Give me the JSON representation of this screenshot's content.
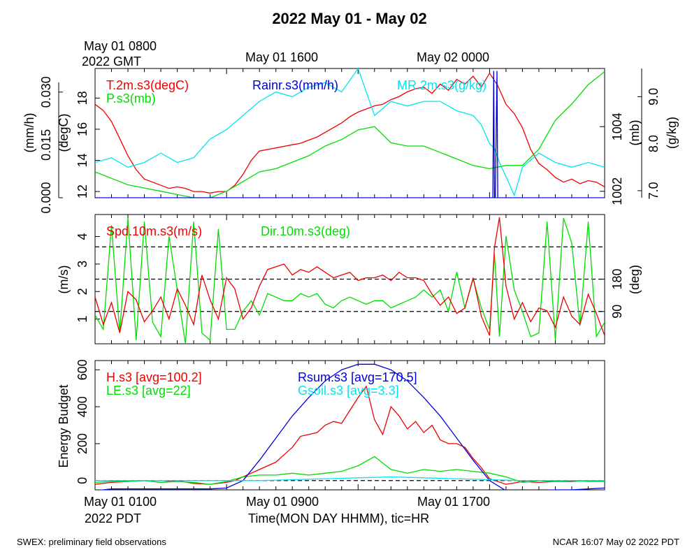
{
  "page": {
    "title": "2022 May 01 - May 02",
    "footer_left": "SWEX: preliminary field observations",
    "footer_right": "NCAR 16:07 May 02 2022 PDT",
    "top_time_left_1": "May 01 0800",
    "top_time_left_2": "2022 GMT",
    "top_time_mid": "May 01 1600",
    "top_time_right": "May 02 0000",
    "bottom_time_left_1": "May 01 0100",
    "bottom_time_left_2": "2022 PDT",
    "bottom_time_mid": "May 01 0900",
    "bottom_time_right": "May 01 1700",
    "xlabel": "Time(MON DAY HHMM), tic=HR"
  },
  "colors": {
    "red": "#ee0000",
    "green": "#00dd00",
    "blue": "#0000dd",
    "cyan": "#00e5ee",
    "black": "#000000"
  },
  "chart_data": [
    {
      "type": "line",
      "panel": "top",
      "x_unit": "hours since May 01 0100 PDT",
      "xlim": [
        0,
        31
      ],
      "axes": {
        "left_outer": {
          "label": "(mm/h)",
          "ticks": [
            "0.000",
            "0.015",
            "0.030"
          ],
          "range": [
            0,
            0.0367
          ]
        },
        "left_inner": {
          "label": "(degC)",
          "ticks": [
            "12",
            "14",
            "16",
            "18"
          ],
          "range": [
            11.6,
            19.9
          ]
        },
        "right_inner": {
          "label": "(mb)",
          "ticks": [
            "1002",
            "1004"
          ],
          "range": [
            1001.8,
            1005.8
          ]
        },
        "right_outer": {
          "label": "(g/kg)",
          "ticks": [
            "7.0",
            "8.0",
            "9.0"
          ],
          "range": [
            6.85,
            9.6
          ]
        }
      },
      "series": [
        {
          "name": "T.2m.s3(degC)",
          "color": "red",
          "axis": "left_inner",
          "x": [
            0,
            0.5,
            1,
            1.5,
            2,
            2.5,
            3,
            3.5,
            4,
            4.5,
            5,
            5.5,
            6,
            6.5,
            7,
            7.5,
            8,
            8.5,
            9,
            9.5,
            10,
            10.5,
            11,
            11.5,
            12,
            12.5,
            13,
            13.5,
            14,
            14.5,
            15,
            15.5,
            16,
            16.5,
            17,
            17.5,
            18,
            18.5,
            19,
            19.5,
            20,
            20.5,
            21,
            21.5,
            22,
            22.5,
            23,
            23.5,
            24,
            24.5,
            25,
            25.5,
            26,
            26.5,
            27,
            27.5,
            28,
            28.5,
            29,
            29.5,
            30,
            30.5,
            31
          ],
          "y": [
            17.6,
            17.2,
            16.5,
            15.4,
            14.3,
            13.4,
            12.8,
            12.6,
            12.4,
            12.2,
            12.3,
            12.2,
            12.0,
            12.0,
            11.9,
            12.0,
            12.0,
            12.4,
            13.1,
            14.0,
            14.6,
            14.7,
            14.8,
            14.9,
            15.0,
            15.1,
            15.3,
            15.5,
            15.8,
            16.1,
            16.4,
            16.8,
            17.1,
            17.3,
            17.5,
            17.6,
            17.9,
            18.1,
            18.4,
            18.6,
            18.7,
            18.3,
            18.9,
            18.5,
            19.2,
            18.9,
            19.4,
            18.7,
            19.6,
            18.8,
            17.6,
            17.0,
            16.1,
            14.7,
            13.8,
            13.4,
            12.9,
            12.6,
            12.8,
            12.5,
            12.7,
            12.6,
            12.3
          ]
        },
        {
          "name": "P.s3(mb)",
          "color": "green",
          "axis": "right_inner",
          "x": [
            0,
            1,
            2,
            3,
            4,
            5,
            6,
            7,
            8,
            9,
            10,
            11,
            12,
            13,
            14,
            15,
            16,
            17,
            18,
            19,
            20,
            21,
            22,
            23,
            24,
            25,
            26,
            27,
            28,
            29,
            30,
            31
          ],
          "y": [
            1002.6,
            1002.4,
            1002.2,
            1002.1,
            1002.0,
            1001.9,
            1001.8,
            1001.8,
            1002.0,
            1002.3,
            1002.6,
            1002.7,
            1002.9,
            1003.1,
            1003.4,
            1003.6,
            1003.9,
            1004.0,
            1003.5,
            1003.4,
            1003.4,
            1003.2,
            1003.0,
            1002.8,
            1002.7,
            1002.8,
            1002.8,
            1003.3,
            1004.2,
            1004.7,
            1005.3,
            1005.7
          ]
        },
        {
          "name": "MR.2m.s3(g/kg)",
          "color": "cyan",
          "axis": "right_outer",
          "x": [
            0,
            1,
            2,
            3,
            4,
            5,
            6,
            7,
            8,
            9,
            10,
            11,
            12,
            13,
            14,
            15,
            16,
            17,
            18,
            19,
            20,
            21,
            22,
            23,
            23.5,
            24,
            24.3,
            24.6,
            25,
            25.5,
            26,
            27,
            28,
            29,
            30,
            31
          ],
          "y": [
            7.6,
            7.7,
            7.5,
            7.6,
            7.8,
            7.6,
            7.7,
            8.1,
            8.3,
            8.6,
            8.9,
            9.1,
            9.0,
            9.2,
            9.3,
            9.1,
            9.6,
            8.6,
            8.9,
            8.8,
            8.9,
            8.9,
            8.7,
            8.6,
            8.4,
            8.0,
            7.9,
            7.6,
            7.3,
            6.9,
            7.5,
            7.8,
            7.6,
            7.5,
            7.6,
            7.5
          ]
        },
        {
          "name": "Rainr.s3(mm/h)",
          "color": "blue",
          "axis": "left_outer",
          "x": [
            0,
            24.2,
            24.25,
            24.3,
            24.35,
            24.45,
            24.5,
            24.55,
            31
          ],
          "y": [
            0,
            0,
            0.036,
            0,
            0,
            0.036,
            0,
            0,
            0
          ]
        }
      ]
    },
    {
      "type": "line",
      "panel": "middle",
      "xlim": [
        0,
        31
      ],
      "axes": {
        "left": {
          "label": "(m/s)",
          "ticks": [
            "1",
            "2",
            "3",
            "4"
          ],
          "range": [
            0.1,
            4.8
          ]
        },
        "right": {
          "label": "(deg)",
          "ticks": [
            "90",
            "180"
          ],
          "range": [
            0,
            360
          ]
        }
      },
      "reference_lines_deg": [
        90,
        180,
        270
      ],
      "series": [
        {
          "name": "Spd.10m.s3(m/s)",
          "color": "red",
          "axis": "left",
          "x": [
            0,
            0.5,
            1,
            1.5,
            2,
            2.5,
            3,
            3.5,
            4,
            4.5,
            5,
            5.5,
            6,
            6.5,
            7,
            7.5,
            8,
            8.5,
            9,
            9.5,
            10,
            10.5,
            11,
            11.5,
            12,
            12.5,
            13,
            13.5,
            14,
            14.5,
            15,
            15.5,
            16,
            16.5,
            17,
            17.5,
            18,
            18.5,
            19,
            19.5,
            20,
            20.5,
            21,
            21.5,
            22,
            22.5,
            23,
            23.5,
            24,
            24.3,
            24.6,
            25,
            25.5,
            26,
            26.5,
            27,
            27.5,
            28,
            28.5,
            29,
            29.5,
            30,
            30.5,
            31
          ],
          "y": [
            1.8,
            0.8,
            1.6,
            0.5,
            2.0,
            1.7,
            0.9,
            1.3,
            1.8,
            1.0,
            2.1,
            1.5,
            0.8,
            2.6,
            1.7,
            1.0,
            2.5,
            2.1,
            1.0,
            1.4,
            2.2,
            2.8,
            2.9,
            3.0,
            2.6,
            2.8,
            2.7,
            2.9,
            2.7,
            2.5,
            2.6,
            2.7,
            2.4,
            2.5,
            2.5,
            2.6,
            2.4,
            2.7,
            2.5,
            2.5,
            2.4,
            1.9,
            1.5,
            1.8,
            1.2,
            1.4,
            2.5,
            1.1,
            0.4,
            3.6,
            4.7,
            2.2,
            1.0,
            1.6,
            0.9,
            1.4,
            1.3,
            0.7,
            1.8,
            1.1,
            0.8,
            1.9,
            1.2,
            0.4
          ]
        },
        {
          "name": "Dir.10m.s3(deg)",
          "color": "green",
          "axis": "right",
          "x": [
            0,
            0.5,
            1,
            1.5,
            2,
            2.5,
            3,
            3.5,
            4,
            4.5,
            5,
            5.5,
            6,
            6.5,
            7,
            7.5,
            8,
            8.5,
            9,
            9.5,
            10,
            10.5,
            11,
            11.5,
            12,
            12.5,
            13,
            13.5,
            14,
            14.5,
            15,
            15.5,
            16,
            16.5,
            17,
            17.5,
            18,
            18.5,
            19,
            19.5,
            20,
            20.5,
            21,
            21.5,
            22,
            22.5,
            23,
            23.5,
            24,
            24.3,
            24.6,
            25,
            25.5,
            26,
            26.5,
            27,
            27.5,
            28,
            28.5,
            29,
            29.5,
            30,
            30.5,
            31
          ],
          "y": [
            80,
            40,
            330,
            30,
            350,
            10,
            340,
            60,
            20,
            300,
            150,
            0,
            340,
            30,
            10,
            320,
            40,
            40,
            90,
            120,
            80,
            140,
            130,
            120,
            120,
            140,
            130,
            140,
            110,
            100,
            120,
            130,
            120,
            110,
            120,
            120,
            100,
            110,
            120,
            130,
            150,
            130,
            150,
            90,
            200,
            100,
            180,
            100,
            40,
            250,
            20,
            300,
            150,
            90,
            20,
            30,
            340,
            10,
            350,
            280,
            50,
            340,
            20,
            60
          ]
        }
      ]
    },
    {
      "type": "line",
      "panel": "bottom",
      "xlim": [
        0,
        31
      ],
      "ylabel": "Energy Budget",
      "ylim": [
        -50,
        650
      ],
      "yticks": [
        0,
        200,
        400,
        600
      ],
      "zero_line": true,
      "series": [
        {
          "name": "H.s3 [avg=100.2]",
          "color": "red",
          "x": [
            0,
            1,
            2,
            3,
            4,
            5,
            6,
            7,
            8,
            8.5,
            9,
            9.5,
            10,
            10.5,
            11,
            11.5,
            12,
            12.5,
            13,
            13.5,
            14,
            14.5,
            15,
            15.5,
            16,
            16.5,
            17,
            17.5,
            18,
            18.5,
            19,
            19.5,
            20,
            20.5,
            21,
            21.5,
            22,
            22.5,
            23,
            23.5,
            24,
            25,
            26,
            27,
            28,
            29,
            30,
            31
          ],
          "y": [
            -20,
            -10,
            -5,
            0,
            -10,
            0,
            -15,
            -20,
            -10,
            0,
            20,
            40,
            60,
            80,
            100,
            140,
            180,
            240,
            250,
            260,
            300,
            320,
            310,
            380,
            450,
            510,
            330,
            250,
            400,
            350,
            280,
            320,
            260,
            300,
            220,
            200,
            200,
            180,
            120,
            70,
            10,
            -20,
            -5,
            -10,
            -5,
            -5,
            0,
            -5
          ]
        },
        {
          "name": "LE.s3 [avg=22]",
          "color": "green",
          "x": [
            0,
            1,
            2,
            3,
            4,
            5,
            6,
            7,
            8,
            9,
            10,
            11,
            12,
            13,
            14,
            15,
            16,
            17,
            18,
            19,
            20,
            21,
            22,
            23,
            24,
            25,
            26,
            27,
            28,
            29,
            30,
            31
          ],
          "y": [
            -10,
            -5,
            -5,
            0,
            -10,
            -5,
            -10,
            -20,
            -5,
            20,
            30,
            30,
            40,
            30,
            40,
            50,
            80,
            130,
            60,
            40,
            60,
            50,
            60,
            50,
            40,
            20,
            -10,
            0,
            -5,
            0,
            -5,
            -5
          ]
        },
        {
          "name": "Rsum.s3 [avg=170.5]",
          "color": "blue",
          "x": [
            0,
            1,
            2,
            3,
            4,
            5,
            6,
            7,
            8,
            9,
            10,
            11,
            12,
            13,
            14,
            15,
            16,
            17,
            18,
            19,
            20,
            21,
            22,
            23,
            24,
            25,
            26,
            27,
            28,
            29,
            30,
            31
          ],
          "y": [
            -55,
            -45,
            -45,
            -45,
            -45,
            -45,
            -45,
            -45,
            -40,
            0,
            110,
            230,
            350,
            450,
            540,
            600,
            630,
            630,
            600,
            540,
            450,
            350,
            230,
            110,
            0,
            -55,
            -60,
            -55,
            -50,
            -50,
            -45,
            -40
          ]
        },
        {
          "name": "Gsoil.s3 [avg=3.3]",
          "color": "cyan",
          "x": [
            0,
            2,
            4,
            6,
            8,
            10,
            12,
            14,
            16,
            18,
            20,
            22,
            24,
            26,
            28,
            30,
            31
          ],
          "y": [
            0,
            0,
            0,
            0,
            0,
            0,
            5,
            10,
            15,
            20,
            15,
            10,
            5,
            0,
            0,
            0,
            0
          ]
        }
      ]
    }
  ]
}
